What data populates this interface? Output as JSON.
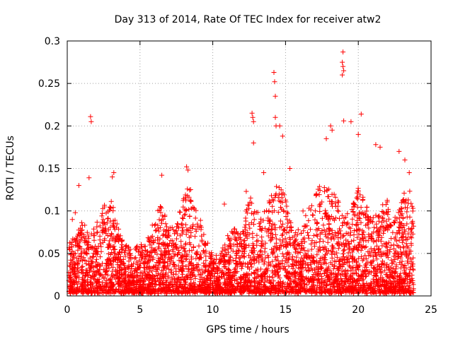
{
  "chart_data": {
    "type": "scatter",
    "title": "Day 313 of 2014, Rate Of TEC Index for receiver atw2",
    "xlabel": "GPS time / hours",
    "ylabel": "ROTI / TECUs",
    "xlim": [
      0,
      25
    ],
    "ylim": [
      0,
      0.3
    ],
    "xticks": [
      0,
      5,
      10,
      15,
      20,
      25
    ],
    "yticks": [
      0,
      0.05,
      0.1,
      0.15,
      0.2,
      0.25,
      0.3
    ],
    "xtick_labels": [
      "0",
      "5",
      "10",
      "15",
      "20",
      "25"
    ],
    "ytick_labels": [
      "0",
      "0.05",
      "0.1",
      "0.15",
      "0.2",
      "0.25",
      "0.3"
    ],
    "grid": true,
    "marker": "+",
    "color": "#ff0000",
    "x_range_of_data": [
      0.1,
      23.8
    ],
    "envelope": [
      [
        0.0,
        0.06
      ],
      [
        0.5,
        0.07
      ],
      [
        1.0,
        0.09
      ],
      [
        1.5,
        0.07
      ],
      [
        2.0,
        0.09
      ],
      [
        2.5,
        0.11
      ],
      [
        3.0,
        0.12
      ],
      [
        3.5,
        0.08
      ],
      [
        4.0,
        0.06
      ],
      [
        4.5,
        0.055
      ],
      [
        5.0,
        0.06
      ],
      [
        5.5,
        0.07
      ],
      [
        6.0,
        0.09
      ],
      [
        6.5,
        0.11
      ],
      [
        7.0,
        0.08
      ],
      [
        7.5,
        0.09
      ],
      [
        8.0,
        0.12
      ],
      [
        8.5,
        0.13
      ],
      [
        9.0,
        0.1
      ],
      [
        9.5,
        0.07
      ],
      [
        10.0,
        0.05
      ],
      [
        10.5,
        0.05
      ],
      [
        11.0,
        0.07
      ],
      [
        11.5,
        0.08
      ],
      [
        12.0,
        0.07
      ],
      [
        12.5,
        0.12
      ],
      [
        13.0,
        0.1
      ],
      [
        13.5,
        0.1
      ],
      [
        14.0,
        0.12
      ],
      [
        14.5,
        0.14
      ],
      [
        15.0,
        0.12
      ],
      [
        15.5,
        0.08
      ],
      [
        16.0,
        0.08
      ],
      [
        16.5,
        0.1
      ],
      [
        17.0,
        0.12
      ],
      [
        17.5,
        0.14
      ],
      [
        18.0,
        0.13
      ],
      [
        18.5,
        0.12
      ],
      [
        19.0,
        0.1
      ],
      [
        19.5,
        0.1
      ],
      [
        20.0,
        0.13
      ],
      [
        20.5,
        0.11
      ],
      [
        21.0,
        0.09
      ],
      [
        21.5,
        0.1
      ],
      [
        22.0,
        0.12
      ],
      [
        22.5,
        0.09
      ],
      [
        23.0,
        0.12
      ],
      [
        23.5,
        0.13
      ],
      [
        23.8,
        0.1
      ]
    ],
    "outliers": [
      [
        1.6,
        0.211
      ],
      [
        1.65,
        0.205
      ],
      [
        1.5,
        0.139
      ],
      [
        0.8,
        0.13
      ],
      [
        3.2,
        0.145
      ],
      [
        3.1,
        0.14
      ],
      [
        6.5,
        0.142
      ],
      [
        8.2,
        0.152
      ],
      [
        8.3,
        0.148
      ],
      [
        12.7,
        0.215
      ],
      [
        12.75,
        0.21
      ],
      [
        12.8,
        0.205
      ],
      [
        12.8,
        0.18
      ],
      [
        14.2,
        0.263
      ],
      [
        14.25,
        0.252
      ],
      [
        14.3,
        0.235
      ],
      [
        14.3,
        0.21
      ],
      [
        14.35,
        0.2
      ],
      [
        14.6,
        0.2
      ],
      [
        14.8,
        0.188
      ],
      [
        17.8,
        0.185
      ],
      [
        18.1,
        0.2
      ],
      [
        18.2,
        0.195
      ],
      [
        18.95,
        0.287
      ],
      [
        18.9,
        0.275
      ],
      [
        18.95,
        0.27
      ],
      [
        19.0,
        0.265
      ],
      [
        18.9,
        0.26
      ],
      [
        19.0,
        0.206
      ],
      [
        19.5,
        0.205
      ],
      [
        20.2,
        0.214
      ],
      [
        20.0,
        0.19
      ],
      [
        21.2,
        0.178
      ],
      [
        21.5,
        0.175
      ],
      [
        22.8,
        0.17
      ],
      [
        23.2,
        0.16
      ],
      [
        23.5,
        0.145
      ],
      [
        10.8,
        0.108
      ],
      [
        12.3,
        0.123
      ],
      [
        16.2,
        0.1
      ],
      [
        13.5,
        0.145
      ],
      [
        15.3,
        0.15
      ],
      [
        0.35,
        0.09
      ],
      [
        0.55,
        0.098
      ]
    ]
  }
}
